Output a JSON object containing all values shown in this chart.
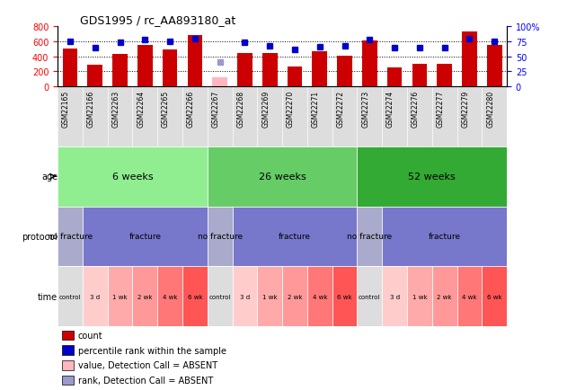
{
  "title": "GDS1995 / rc_AA893180_at",
  "samples": [
    "GSM22165",
    "GSM22166",
    "GSM22263",
    "GSM22264",
    "GSM22265",
    "GSM22266",
    "GSM22267",
    "GSM22268",
    "GSM22269",
    "GSM22270",
    "GSM22271",
    "GSM22272",
    "GSM22273",
    "GSM22274",
    "GSM22276",
    "GSM22277",
    "GSM22279",
    "GSM22280"
  ],
  "bar_values": [
    505,
    295,
    435,
    555,
    490,
    685,
    120,
    450,
    450,
    265,
    465,
    410,
    610,
    250,
    305,
    305,
    730,
    555
  ],
  "bar_absent": [
    false,
    false,
    false,
    false,
    false,
    false,
    true,
    false,
    false,
    false,
    false,
    false,
    false,
    false,
    false,
    false,
    false,
    false
  ],
  "percentile_values": [
    75,
    65,
    74,
    78,
    75,
    80,
    40,
    74,
    68,
    62,
    66,
    68,
    78,
    65,
    65,
    65,
    80,
    75
  ],
  "percentile_absent": [
    false,
    false,
    false,
    false,
    false,
    false,
    true,
    false,
    false,
    false,
    false,
    false,
    false,
    false,
    false,
    false,
    false,
    false
  ],
  "bar_color": "#CC0000",
  "bar_absent_color": "#FFB6C1",
  "dot_color": "#0000CC",
  "dot_absent_color": "#9999CC",
  "ylim_left": [
    0,
    800
  ],
  "ylim_right": [
    0,
    100
  ],
  "yticks_left": [
    0,
    200,
    400,
    600,
    800
  ],
  "ytick_labels_right": [
    "0",
    "25",
    "50",
    "75",
    "100%"
  ],
  "age_groups": [
    {
      "label": "6 weeks",
      "start": 0,
      "end": 6,
      "color": "#90EE90"
    },
    {
      "label": "26 weeks",
      "start": 6,
      "end": 12,
      "color": "#66CC66"
    },
    {
      "label": "52 weeks",
      "start": 12,
      "end": 18,
      "color": "#33AA33"
    }
  ],
  "protocol_groups": [
    {
      "label": "no fracture",
      "start": 0,
      "end": 1,
      "color": "#AAAACC"
    },
    {
      "label": "fracture",
      "start": 1,
      "end": 6,
      "color": "#7777CC"
    },
    {
      "label": "no fracture",
      "start": 6,
      "end": 7,
      "color": "#AAAACC"
    },
    {
      "label": "fracture",
      "start": 7,
      "end": 12,
      "color": "#7777CC"
    },
    {
      "label": "no fracture",
      "start": 12,
      "end": 13,
      "color": "#AAAACC"
    },
    {
      "label": "fracture",
      "start": 13,
      "end": 18,
      "color": "#7777CC"
    }
  ],
  "time_labels": [
    "control",
    "3 d",
    "1 wk",
    "2 wk",
    "4 wk",
    "6 wk",
    "control",
    "3 d",
    "1 wk",
    "2 wk",
    "4 wk",
    "6 wk",
    "control",
    "3 d",
    "1 wk",
    "2 wk",
    "4 wk",
    "6 wk"
  ],
  "time_colors": [
    "#DDDDDD",
    "#FFCCCC",
    "#FFAAAA",
    "#FF9999",
    "#FF7777",
    "#FF5555",
    "#DDDDDD",
    "#FFCCCC",
    "#FFAAAA",
    "#FF9999",
    "#FF7777",
    "#FF5555",
    "#DDDDDD",
    "#FFCCCC",
    "#FFAAAA",
    "#FF9999",
    "#FF7777",
    "#FF5555"
  ],
  "legend_items": [
    {
      "color": "#CC0000",
      "label": "count"
    },
    {
      "color": "#0000CC",
      "label": "percentile rank within the sample"
    },
    {
      "color": "#FFB6C1",
      "label": "value, Detection Call = ABSENT"
    },
    {
      "color": "#9999CC",
      "label": "rank, Detection Call = ABSENT"
    }
  ],
  "bg_color": "#FFFFFF",
  "tick_label_area_color": "#DDDDDD"
}
